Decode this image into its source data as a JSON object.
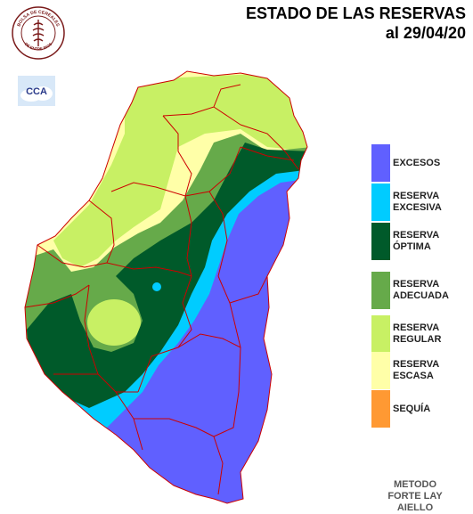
{
  "header": {
    "title_line1": "ESTADO DE LAS RESERVAS",
    "title_line2": "al 29/04/20"
  },
  "logos": {
    "seal_text_top": "BOLSA DE CEREALES",
    "seal_text_bottom": "DE ENTRE RIOS",
    "cca_text": "CCA"
  },
  "legend": {
    "items": [
      {
        "line1": "EXCESOS",
        "line2": "",
        "color": "#6060ff"
      },
      {
        "line1": "RESERVA",
        "line2": "EXCESIVA",
        "color": "#00ccff"
      },
      {
        "line1": "RESERVA",
        "line2": "ÓPTIMA",
        "color": "#005a2a"
      },
      {
        "line1": "RESERVA",
        "line2": "ADECUADA",
        "color": "#66aa4a"
      },
      {
        "line1": "RESERVA",
        "line2": "REGULAR",
        "color": "#c8f064"
      },
      {
        "line1": "RESERVA",
        "line2": "ESCASA",
        "color": "#ffffa8"
      },
      {
        "line1": "SEQUÍA",
        "line2": "",
        "color": "#ff9933"
      }
    ]
  },
  "footer": {
    "line1": "METODO",
    "line2": "FORTE LAY",
    "line3": "AIELLO"
  },
  "colors": {
    "excesos": "#6060ff",
    "excesiva": "#00ccff",
    "optima": "#005a2a",
    "adecuada": "#66aa4a",
    "regular": "#c8f064",
    "escasa": "#ffffa8",
    "border": "#cc0000"
  }
}
